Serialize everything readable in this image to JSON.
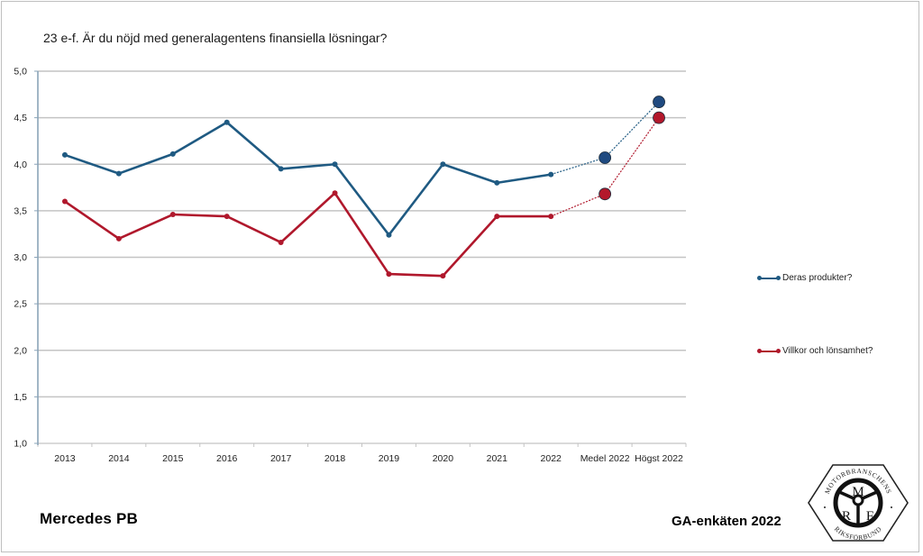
{
  "title": "23 e-f. Är du nöjd med generalagentens finansiella lösningar?",
  "footer": {
    "brand": "Mercedes PB",
    "survey": "GA-enkäten 2022"
  },
  "logo": {
    "top_text": "MOTORBRANSCHENS",
    "bottom_text": "RIKSFÖRBUND",
    "letters": [
      "M",
      "R",
      "F"
    ]
  },
  "chart_data": {
    "type": "line",
    "title": "23 e-f. Är du nöjd med generalagentens finansiella lösningar?",
    "xlabel": "",
    "ylabel": "",
    "ylim": [
      1.0,
      5.0
    ],
    "yticks": [
      "1,0",
      "1,5",
      "2,0",
      "2,5",
      "3,0",
      "3,5",
      "4,0",
      "4,5",
      "5,0"
    ],
    "ytick_values": [
      1.0,
      1.5,
      2.0,
      2.5,
      3.0,
      3.5,
      4.0,
      4.5,
      5.0
    ],
    "grid": true,
    "legend_position": "right",
    "categories": [
      "2013",
      "2014",
      "2015",
      "2016",
      "2017",
      "2018",
      "2019",
      "2020",
      "2021",
      "2022",
      "Medel 2022",
      "Högst 2022"
    ],
    "solid_count": 10,
    "series": [
      {
        "name": "Deras produkter?",
        "color": "#1f5a82",
        "highlight_color": "#1f4a80",
        "values": [
          4.1,
          3.9,
          4.11,
          4.45,
          3.95,
          4.0,
          3.24,
          4.0,
          3.8,
          3.89,
          4.07,
          4.67
        ]
      },
      {
        "name": "Villkor och lönsamhet?",
        "color": "#b0182c",
        "highlight_color": "#b3182b",
        "values": [
          3.6,
          3.2,
          3.46,
          3.44,
          3.16,
          3.69,
          2.82,
          2.8,
          3.44,
          3.44,
          3.68,
          4.5
        ]
      }
    ]
  }
}
